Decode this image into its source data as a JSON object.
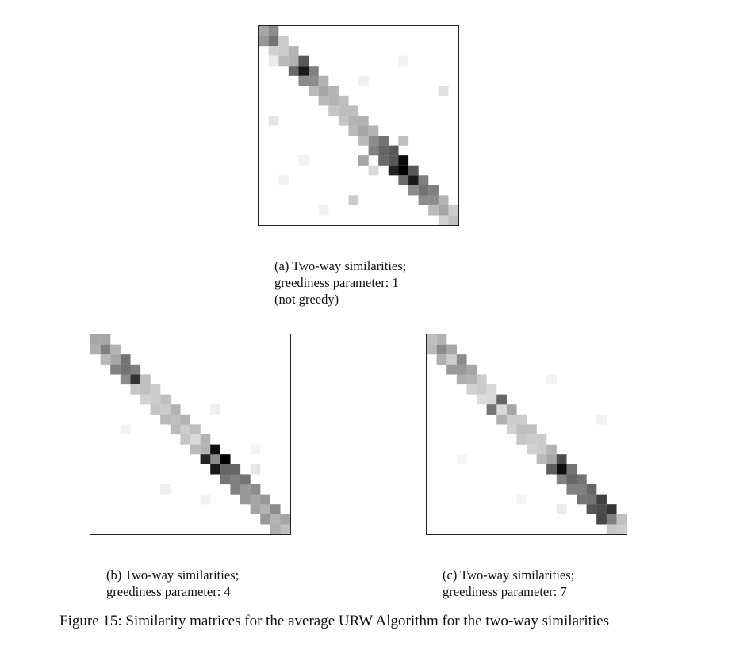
{
  "figure": {
    "caption": "Figure 15: Similarity matrices for the average URW Algorithm for the two-way similarities"
  },
  "panels": [
    {
      "id": "a",
      "caption_lines": [
        "(a)  Two-way   similarities;",
        "greediness  parameter:    1",
        "(not greedy)"
      ],
      "matrix_size": 20,
      "diag": [
        0.35,
        0.55,
        0.2,
        0.3,
        0.9,
        0.45,
        0.35,
        0.3,
        0.25,
        0.3,
        0.35,
        0.45,
        0.6,
        0.65,
        1.0,
        0.9,
        0.55,
        0.45,
        0.35,
        0.25
      ],
      "off": [
        0.45,
        0.2,
        0.3,
        0.65,
        0.5,
        0.3,
        0.3,
        0.25,
        0.25,
        0.3,
        0.3,
        0.55,
        0.65,
        0.95,
        0.65,
        0.5,
        0.5,
        0.3,
        0.2
      ],
      "extra": [
        [
          6,
          18,
          0.12
        ],
        [
          3,
          1,
          0.08
        ],
        [
          9,
          1,
          0.1
        ],
        [
          13,
          10,
          0.35
        ],
        [
          17,
          9,
          0.2
        ],
        [
          11,
          14,
          0.25
        ],
        [
          14,
          11,
          0.15
        ],
        [
          3,
          14,
          0.05
        ],
        [
          5,
          10,
          0.06
        ],
        [
          13,
          4,
          0.05
        ],
        [
          15,
          2,
          0.05
        ],
        [
          18,
          6,
          0.05
        ]
      ]
    },
    {
      "id": "b",
      "caption_lines": [
        "(b)  Two-way   similarities;",
        "greediness parameter: 4"
      ],
      "matrix_size": 20,
      "diag": [
        0.35,
        0.5,
        0.35,
        0.55,
        0.8,
        0.25,
        0.2,
        0.2,
        0.25,
        0.2,
        0.15,
        0.3,
        0.45,
        0.6,
        0.5,
        0.4,
        0.35,
        0.3,
        0.3,
        0.25
      ],
      "off": [
        0.35,
        0.3,
        0.55,
        0.5,
        0.25,
        0.2,
        0.25,
        0.3,
        0.3,
        0.25,
        0.3,
        0.95,
        1.0,
        0.6,
        0.55,
        0.45,
        0.4,
        0.45,
        0.35
      ],
      "extra": [
        [
          13,
          16,
          0.1
        ],
        [
          9,
          3,
          0.05
        ],
        [
          15,
          7,
          0.06
        ],
        [
          7,
          12,
          0.06
        ],
        [
          11,
          16,
          0.04
        ],
        [
          16,
          11,
          0.05
        ]
      ]
    },
    {
      "id": "c",
      "caption_lines": [
        "(c)  Two-way   similarities;",
        "greediness parameter: 7"
      ],
      "matrix_size": 20,
      "diag": [
        0.25,
        0.45,
        0.2,
        0.4,
        0.3,
        0.2,
        0.15,
        0.15,
        0.2,
        0.25,
        0.2,
        0.2,
        0.35,
        0.95,
        0.6,
        0.5,
        0.55,
        0.7,
        0.5,
        0.2
      ],
      "off": [
        0.3,
        0.35,
        0.45,
        0.35,
        0.2,
        0.15,
        0.6,
        0.35,
        0.2,
        0.25,
        0.2,
        0.3,
        0.7,
        0.55,
        0.55,
        0.6,
        0.75,
        0.8,
        0.25
      ],
      "extra": [
        [
          4,
          12,
          0.05
        ],
        [
          8,
          17,
          0.05
        ],
        [
          16,
          9,
          0.04
        ],
        [
          12,
          3,
          0.04
        ],
        [
          17,
          13,
          0.08
        ]
      ]
    }
  ]
}
